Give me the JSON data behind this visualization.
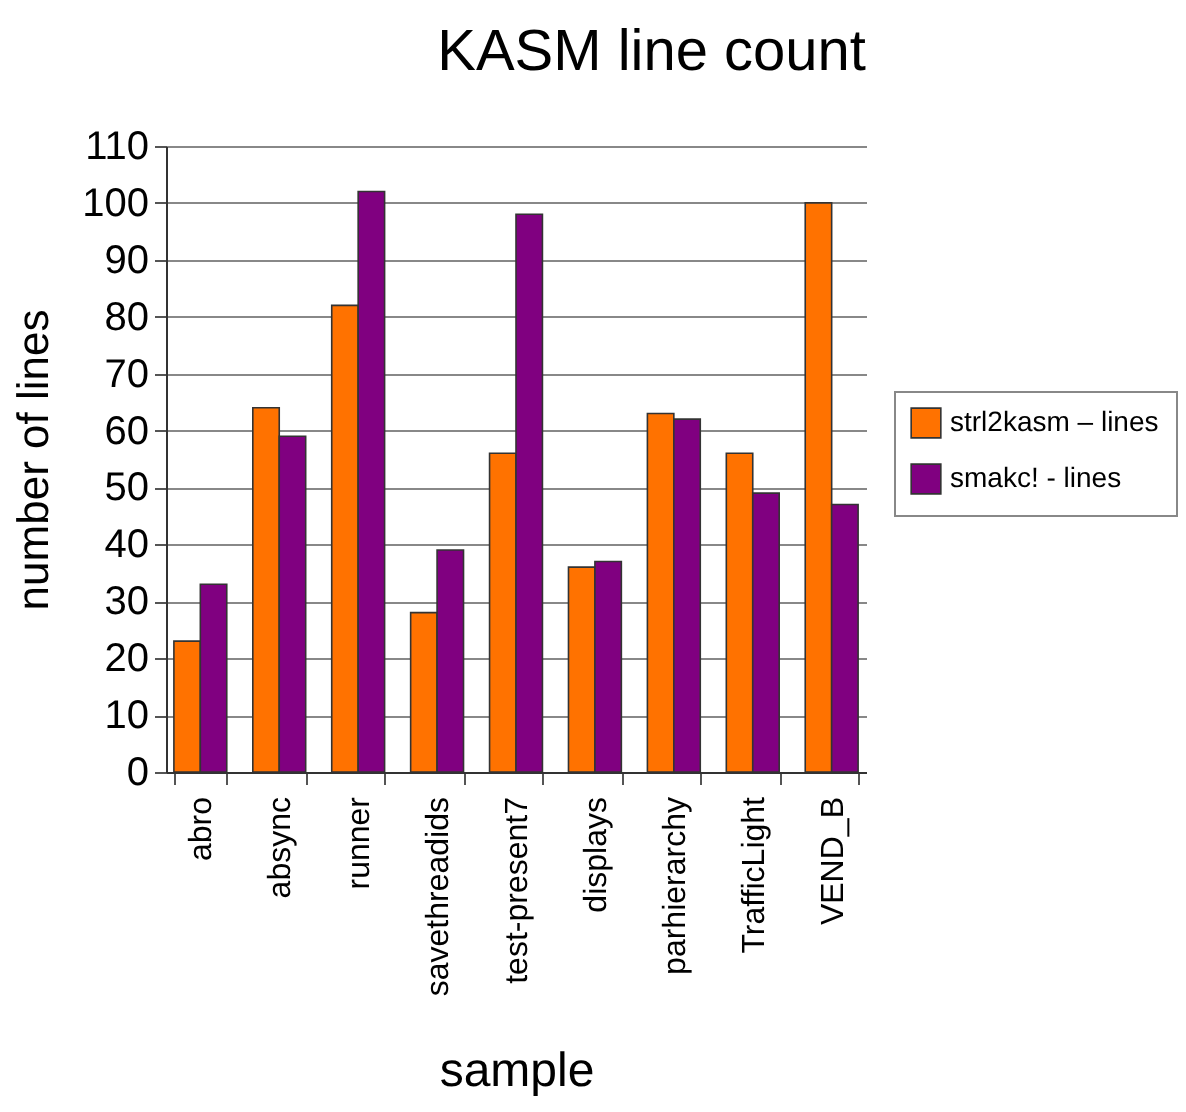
{
  "chart_data": {
    "type": "bar",
    "title": "KASM line count",
    "xlabel": "sample",
    "ylabel": "number of lines",
    "categories": [
      "abro",
      "absync",
      "runner",
      "savethreadids",
      "test-present7",
      "displays",
      "parhierarchy",
      "TrafficLight",
      "VEND_B"
    ],
    "series": [
      {
        "name": "strl2kasm – lines",
        "color": "#ff7200",
        "values": [
          23,
          64,
          82,
          28,
          56,
          36,
          63,
          56,
          100
        ]
      },
      {
        "name": "smakc! - lines",
        "color": "#800080",
        "values": [
          33,
          59,
          102,
          39,
          98,
          37,
          62,
          49,
          47
        ]
      }
    ],
    "ylim": [
      0,
      110
    ],
    "yticks": [
      0,
      10,
      20,
      30,
      40,
      50,
      60,
      70,
      80,
      90,
      100,
      110
    ],
    "grid": "y",
    "legend": "right"
  }
}
